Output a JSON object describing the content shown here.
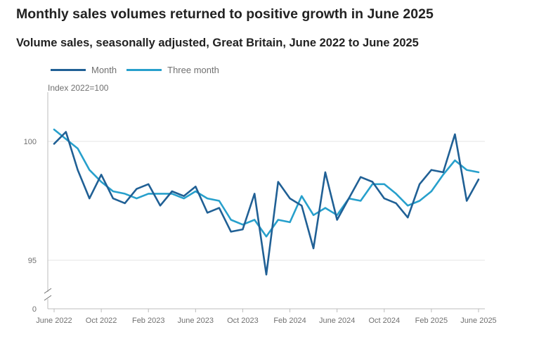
{
  "chart_data": {
    "type": "line",
    "title": "Monthly sales volumes returned to positive growth in June 2025",
    "subtitle": "Volume sales, seasonally adjusted, Great Britain, June 2022 to June 2025",
    "ylabel": "Index 2022=100",
    "y_ticks": [
      "100",
      "95",
      "0"
    ],
    "x_tick_labels": [
      "June 2022",
      "Oct 2022",
      "Feb 2023",
      "June 2023",
      "Oct 2023",
      "Feb 2024",
      "June 2024",
      "Oct 2024",
      "Feb 2025",
      "June 2025"
    ],
    "x_tick_indices": [
      0,
      4,
      8,
      12,
      16,
      20,
      24,
      28,
      32,
      36
    ],
    "ylim": [
      93.8,
      102.1
    ],
    "axis_break": true,
    "series": [
      {
        "name": "Month",
        "color": "#206095",
        "values": [
          99.9,
          100.4,
          98.8,
          97.6,
          98.6,
          97.6,
          97.4,
          98.0,
          98.2,
          97.3,
          97.9,
          97.7,
          98.1,
          97.0,
          97.2,
          96.2,
          96.3,
          97.8,
          94.4,
          98.3,
          97.6,
          97.3,
          95.5,
          98.7,
          96.7,
          97.6,
          98.5,
          98.3,
          97.6,
          97.4,
          96.8,
          98.2,
          98.8,
          98.7,
          100.3,
          97.5,
          98.4
        ]
      },
      {
        "name": "Three month",
        "color": "#27a0cc",
        "values": [
          100.5,
          100.1,
          99.7,
          98.8,
          98.3,
          97.9,
          97.8,
          97.6,
          97.8,
          97.8,
          97.8,
          97.6,
          97.9,
          97.6,
          97.5,
          96.7,
          96.5,
          96.7,
          96.0,
          96.7,
          96.6,
          97.7,
          96.9,
          97.2,
          96.9,
          97.6,
          97.5,
          98.2,
          98.2,
          97.8,
          97.3,
          97.5,
          97.9,
          98.6,
          99.2,
          98.8,
          98.7
        ]
      }
    ]
  }
}
